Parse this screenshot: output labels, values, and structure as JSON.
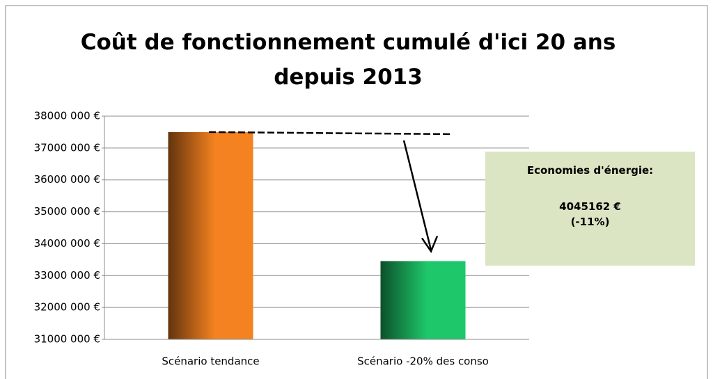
{
  "chart_data": {
    "type": "bar",
    "title": "Coût de fonctionnement cumulé d'ici 20 ans depuis 2013",
    "categories": [
      "Scénario tendance",
      "Scénario -20% des conso"
    ],
    "values": [
      37500000,
      33454838
    ],
    "colors": [
      "#f58220",
      "#1ec86a"
    ],
    "ylim": [
      31000000,
      38000000
    ],
    "yticks": [
      {
        "value": 31000000,
        "label": "31000 000 €"
      },
      {
        "value": 32000000,
        "label": "32000 000 €"
      },
      {
        "value": 33000000,
        "label": "33000 000 €"
      },
      {
        "value": 34000000,
        "label": "34000 000 €"
      },
      {
        "value": 35000000,
        "label": "35000 000 €"
      },
      {
        "value": 36000000,
        "label": "36000 000 €"
      },
      {
        "value": 37000000,
        "label": "37000 000 €"
      },
      {
        "value": 38000000,
        "label": "38000 000 €"
      }
    ],
    "grid": true,
    "annotation": {
      "heading": "Economies d'énergie:",
      "amount": "4045162 €",
      "percent": "(-11%)"
    }
  }
}
